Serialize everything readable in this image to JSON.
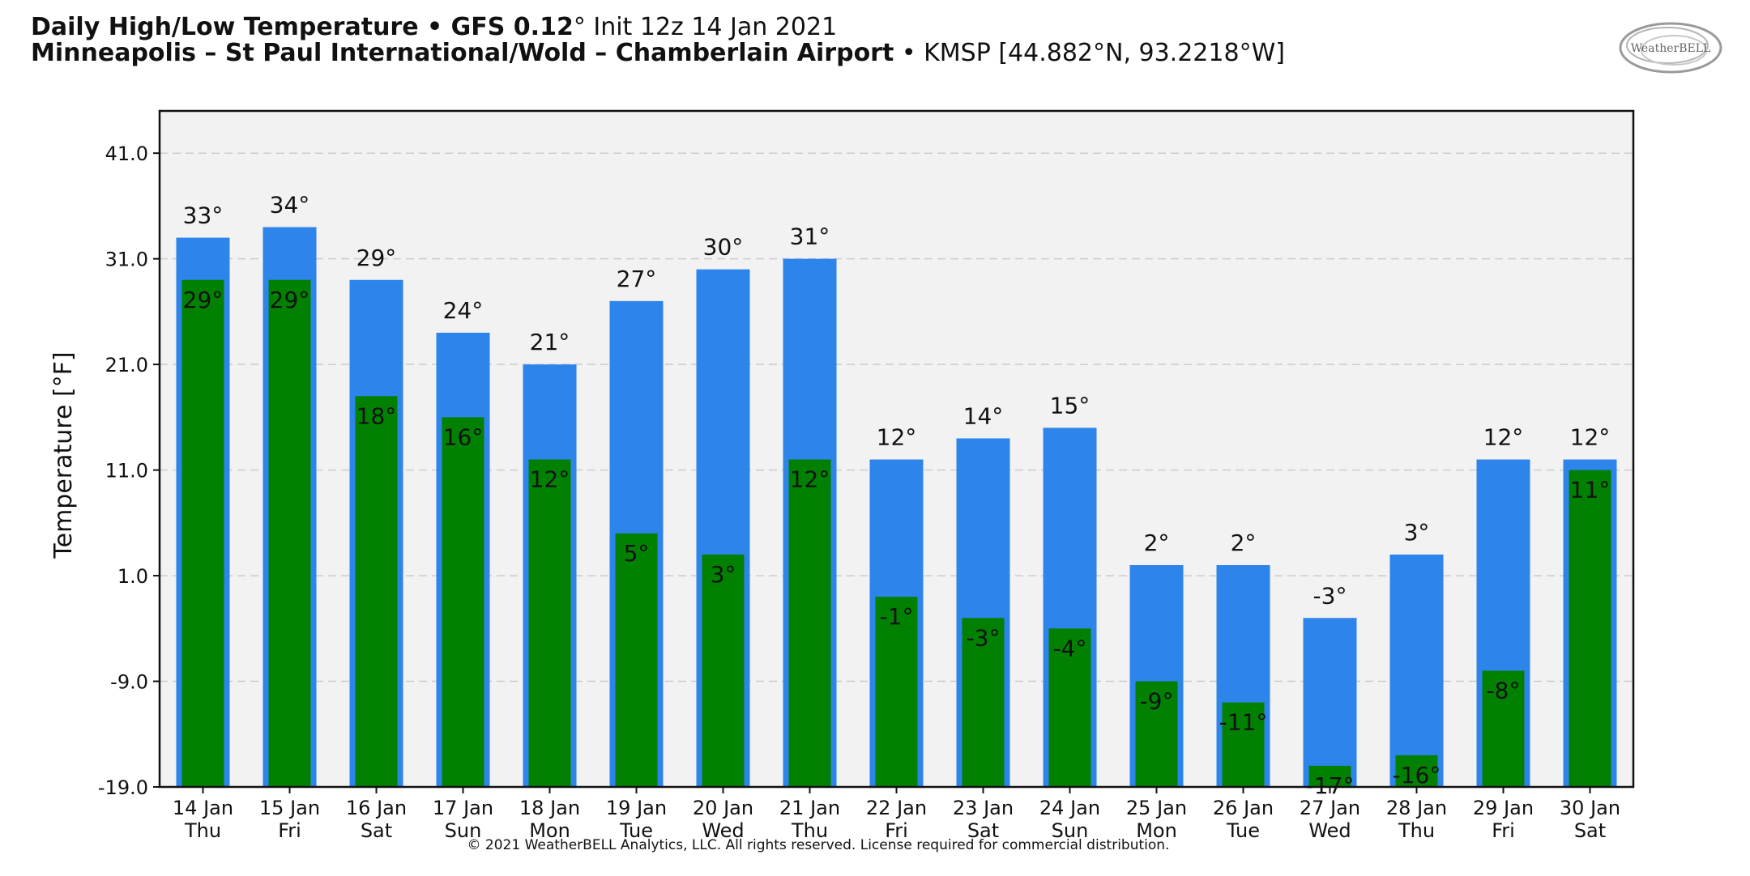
{
  "header": {
    "title_bold": "Daily High/Low Temperature • GFS 0.12",
    "title_deg": "°",
    "title_init": " Init 12z 14 Jan 2021",
    "location_bold": "Minneapolis – St Paul International/Wold – Chamberlain Airport",
    "location_rest": " • KMSP [44.882°N, 93.2218°W]"
  },
  "logo": {
    "icon": "weatherbell-logo",
    "text": "WeatherBELL"
  },
  "copyright": "© 2021 WeatherBELL Analytics, LLC. All rights reserved. License required for commercial distribution.",
  "colors": {
    "high": "#2d84eb",
    "low": "#028002",
    "plot_bg": "#f2f2f2",
    "grid": "#cccccc"
  },
  "chart_data": {
    "type": "bar",
    "ylabel": "Temperature [°F]",
    "ylim": [
      -19.0,
      45.0
    ],
    "yticks": [
      "41.0",
      "31.0",
      "21.0",
      "11.0",
      "1.0",
      "-9.0",
      "-19.0"
    ],
    "ytick_values": [
      41,
      31,
      21,
      11,
      1,
      -9,
      -19
    ],
    "grid": true,
    "categories": [
      [
        "14 Jan",
        "Thu"
      ],
      [
        "15 Jan",
        "Fri"
      ],
      [
        "16 Jan",
        "Sat"
      ],
      [
        "17 Jan",
        "Sun"
      ],
      [
        "18 Jan",
        "Mon"
      ],
      [
        "19 Jan",
        "Tue"
      ],
      [
        "20 Jan",
        "Wed"
      ],
      [
        "21 Jan",
        "Thu"
      ],
      [
        "22 Jan",
        "Fri"
      ],
      [
        "23 Jan",
        "Sat"
      ],
      [
        "24 Jan",
        "Sun"
      ],
      [
        "25 Jan",
        "Mon"
      ],
      [
        "26 Jan",
        "Tue"
      ],
      [
        "27 Jan",
        "Wed"
      ],
      [
        "28 Jan",
        "Thu"
      ],
      [
        "29 Jan",
        "Fri"
      ],
      [
        "30 Jan",
        "Sat"
      ]
    ],
    "series": [
      {
        "values": [
          33,
          34,
          29,
          24,
          21,
          27,
          30,
          31,
          12,
          14,
          15,
          2,
          2,
          -3,
          3,
          12,
          12
        ],
        "labels": [
          "33°",
          "34°",
          "29°",
          "24°",
          "21°",
          "27°",
          "30°",
          "31°",
          "12°",
          "14°",
          "15°",
          "2°",
          "2°",
          "-3°",
          "3°",
          "12°",
          "12°"
        ]
      },
      {
        "values": [
          29,
          29,
          18,
          16,
          12,
          5,
          3,
          12,
          -1,
          -3,
          -4,
          -9,
          -11,
          -17,
          -16,
          -8,
          11
        ],
        "labels": [
          "29°",
          "29°",
          "18°",
          "16°",
          "12°",
          "5°",
          "3°",
          "12°",
          "-1°",
          "-3°",
          "-4°",
          "-9°",
          "-11°",
          "-17°",
          "-16°",
          "-8°",
          "11°"
        ]
      }
    ]
  }
}
